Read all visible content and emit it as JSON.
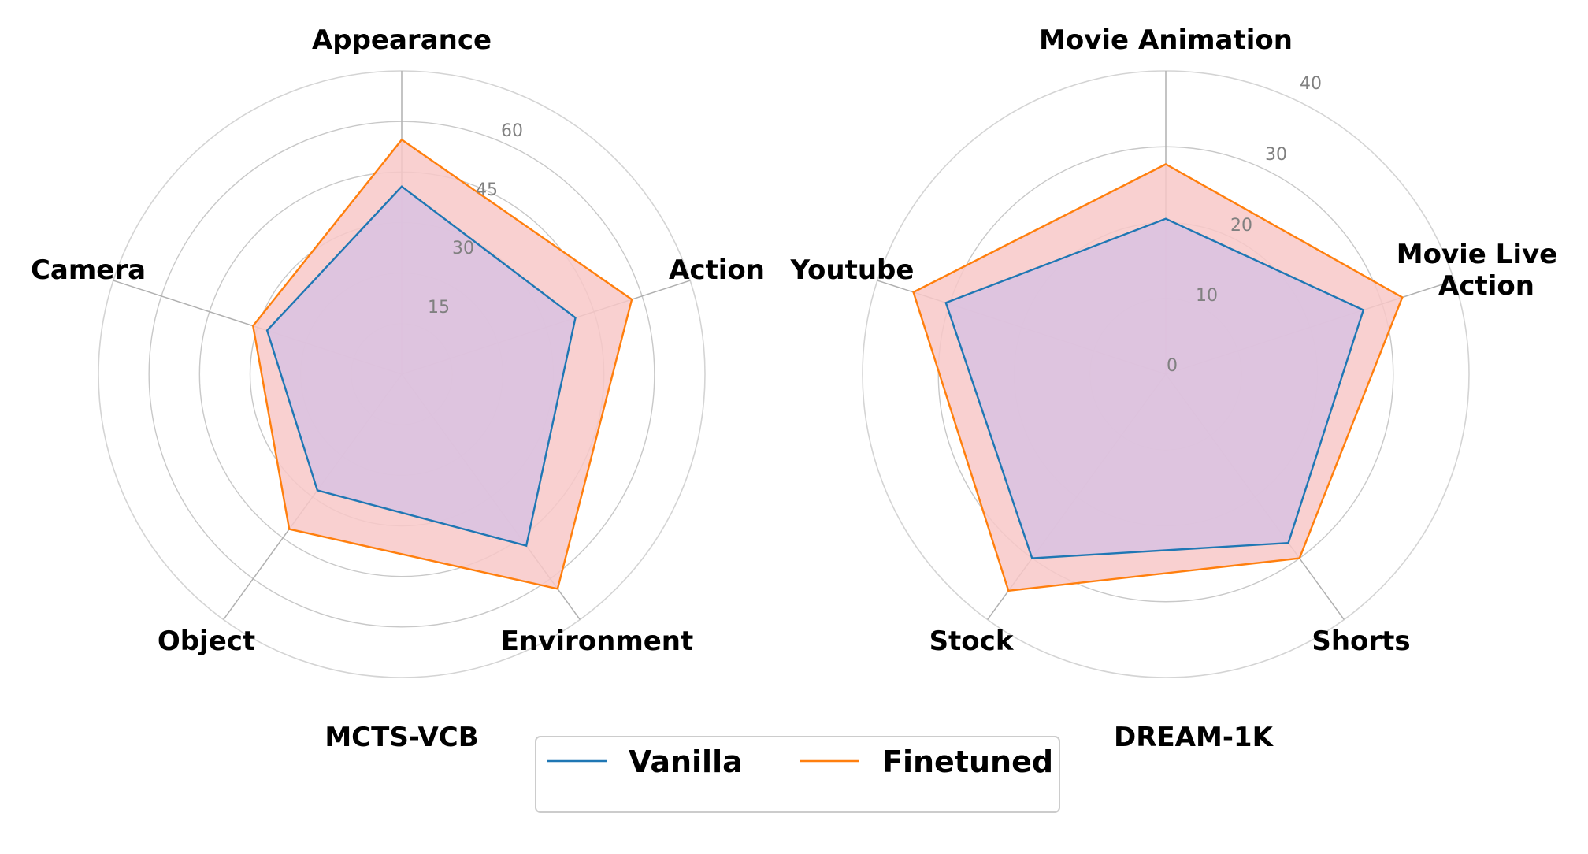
{
  "chart_data": [
    {
      "type": "radar",
      "subtitle": "MCTS-VCB",
      "categories": [
        "Appearance",
        "Action",
        "Environment",
        "Object",
        "Camera"
      ],
      "rlim": [
        -15,
        75
      ],
      "rings": [
        0,
        15,
        30,
        45,
        60,
        75
      ],
      "tick_labels": [
        "15",
        "30",
        "45",
        "60"
      ],
      "series": [
        {
          "name": "Vanilla",
          "values": [
            40.7,
            39.2,
            47.9,
            27.6,
            27.0
          ]
        },
        {
          "name": "Finetuned",
          "values": [
            54.6,
            56.8,
            63.7,
            41.8,
            31.4
          ]
        }
      ]
    },
    {
      "type": "radar",
      "subtitle": "DREAM-1K",
      "categories": [
        "Movie Animation",
        "Movie Live Action",
        "Shorts",
        "Stock",
        "Youtube"
      ],
      "rlim": [
        0,
        40
      ],
      "rings": [
        10,
        20,
        30,
        40
      ],
      "tick_labels": [
        "0",
        "10",
        "20",
        "30",
        "40"
      ],
      "series": [
        {
          "name": "Vanilla",
          "values": [
            20.5,
            27.4,
            27.5,
            30.0,
            30.5
          ]
        },
        {
          "name": "Finetuned",
          "values": [
            27.7,
            32.8,
            30.0,
            35.3,
            35.0
          ]
        }
      ]
    }
  ],
  "legend": {
    "items": [
      {
        "label": "Vanilla",
        "color": "#1f77b4"
      },
      {
        "label": "Finetuned",
        "color": "#ff7f0e"
      }
    ]
  },
  "colors": {
    "fill": "#f8c8c8",
    "overlap": "#d9c2e2",
    "ring": "#c8c8c8",
    "spoke": "#b0b0b0"
  }
}
